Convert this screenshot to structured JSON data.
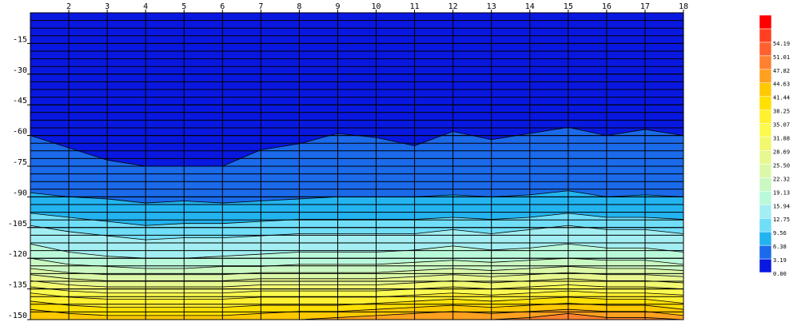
{
  "chart_data": {
    "type": "contour",
    "x": [
      1,
      2,
      3,
      4,
      5,
      6,
      7,
      8,
      9,
      10,
      11,
      12,
      13,
      14,
      15,
      16,
      17,
      18
    ],
    "xlim": [
      1,
      18
    ],
    "xticks": [
      2,
      3,
      4,
      5,
      6,
      7,
      8,
      9,
      10,
      11,
      12,
      13,
      14,
      15,
      16,
      17,
      18
    ],
    "ylim": [
      0,
      -150
    ],
    "yticks": [
      -15,
      -30,
      -45,
      -60,
      -75,
      -90,
      -105,
      -120,
      -135,
      -150
    ],
    "minor_grid_step": 3.75,
    "grid": true,
    "levels": [
      {
        "value": 0,
        "label": "0.00"
      },
      {
        "value": 3.19,
        "label": "3.19"
      },
      {
        "value": 6.38,
        "label": "6.38"
      },
      {
        "value": 9.56,
        "label": "9.56"
      },
      {
        "value": 12.75,
        "label": "12.75"
      },
      {
        "value": 15.94,
        "label": "15.94"
      },
      {
        "value": 19.13,
        "label": "19.13"
      },
      {
        "value": 22.32,
        "label": "22.32"
      },
      {
        "value": 25.5,
        "label": "25.50"
      },
      {
        "value": 28.69,
        "label": "28.69"
      },
      {
        "value": 31.88,
        "label": "31.88"
      },
      {
        "value": 35.07,
        "label": "35.07"
      },
      {
        "value": 38.25,
        "label": "38.25"
      },
      {
        "value": 41.44,
        "label": "41.44"
      },
      {
        "value": 44.63,
        "label": "44.63"
      },
      {
        "value": 47.82,
        "label": "47.82"
      },
      {
        "value": 51.01,
        "label": "51.01"
      },
      {
        "value": 54.19,
        "label": "54.19"
      }
    ],
    "level_colors": [
      "#0818e0",
      "#1a6aea",
      "#22b4f0",
      "#70def8",
      "#a2eef2",
      "#baf8da",
      "#caf8c2",
      "#daf8a8",
      "#e8f890",
      "#f2f870",
      "#fafa50",
      "#fff030",
      "#ffe000",
      "#ffc800",
      "#ffa020",
      "#ff8030",
      "#ff6030",
      "#ff4020",
      "#ff0000"
    ],
    "isolines": [
      {
        "values": [
          -60,
          -66,
          -72,
          -75,
          -75,
          -75,
          -67,
          -64,
          -59,
          -61,
          -65,
          -58,
          -62,
          -59,
          -56,
          -60,
          -57,
          -60
        ]
      },
      {
        "values": [
          -88,
          -90,
          -91,
          -93,
          -92,
          -93,
          -92,
          -91,
          -90,
          -90,
          -90,
          -89,
          -90,
          -89,
          -87,
          -90,
          -89,
          -90
        ]
      },
      {
        "values": [
          -98,
          -100,
          -102,
          -104,
          -103,
          -103,
          -102,
          -101,
          -101,
          -101,
          -101,
          -100,
          -101,
          -100,
          -98,
          -100,
          -100,
          -101
        ]
      },
      {
        "values": [
          -104,
          -107,
          -109,
          -111,
          -110,
          -110,
          -109,
          -108,
          -108,
          -108,
          -108,
          -106,
          -108,
          -106,
          -104,
          -106,
          -106,
          -108
        ]
      },
      {
        "values": [
          -113,
          -117,
          -119,
          -120,
          -120,
          -119,
          -118,
          -117,
          -117,
          -117,
          -116,
          -114,
          -116,
          -115,
          -113,
          -115,
          -115,
          -117
        ]
      },
      {
        "values": [
          -120,
          -123,
          -124,
          -125,
          -125,
          -124,
          -124,
          -123,
          -123,
          -123,
          -122,
          -121,
          -122,
          -121,
          -120,
          -121,
          -121,
          -123
        ]
      },
      {
        "values": [
          -125,
          -127,
          -128,
          -128,
          -128,
          -128,
          -127,
          -127,
          -127,
          -127,
          -126,
          -125,
          -126,
          -125,
          -124,
          -125,
          -125,
          -126
        ]
      },
      {
        "values": [
          -128,
          -130,
          -131,
          -131,
          -131,
          -131,
          -130,
          -130,
          -130,
          -130,
          -129,
          -128,
          -129,
          -128,
          -127,
          -128,
          -128,
          -129
        ]
      },
      {
        "values": [
          -131,
          -133,
          -134,
          -134,
          -134,
          -134,
          -133,
          -133,
          -133,
          -133,
          -132,
          -131,
          -132,
          -131,
          -130,
          -131,
          -131,
          -132
        ]
      },
      {
        "values": [
          -134,
          -136,
          -137,
          -137,
          -137,
          -137,
          -136,
          -136,
          -136,
          -136,
          -135,
          -134,
          -135,
          -134,
          -133,
          -134,
          -134,
          -135
        ]
      },
      {
        "values": [
          -137,
          -139,
          -140,
          -140,
          -140,
          -140,
          -139,
          -139,
          -139,
          -139,
          -138,
          -137,
          -138,
          -137,
          -136,
          -137,
          -137,
          -138
        ]
      },
      {
        "values": [
          -141,
          -143,
          -144,
          -144,
          -144,
          -144,
          -143,
          -143,
          -143,
          -142,
          -141,
          -140,
          -141,
          -140,
          -139,
          -140,
          -140,
          -142
        ]
      },
      {
        "values": [
          -145,
          -147,
          -148,
          -148,
          -148,
          -148,
          -147,
          -146,
          -146,
          -145,
          -144,
          -143,
          -144,
          -143,
          -142,
          -143,
          -143,
          -145
        ]
      },
      {
        "values": [
          -150,
          -150,
          -150,
          -150,
          -150,
          -150,
          -150,
          -150,
          -149,
          -148,
          -147,
          -146,
          -147,
          -146,
          -145,
          -146,
          -146,
          -148
        ]
      },
      {
        "values": [
          -150,
          -150,
          -150,
          -150,
          -150,
          -150,
          -150,
          -150,
          -150,
          -150,
          -150,
          -150,
          -150,
          -149,
          -147,
          -149,
          -149,
          -150
        ]
      }
    ]
  }
}
